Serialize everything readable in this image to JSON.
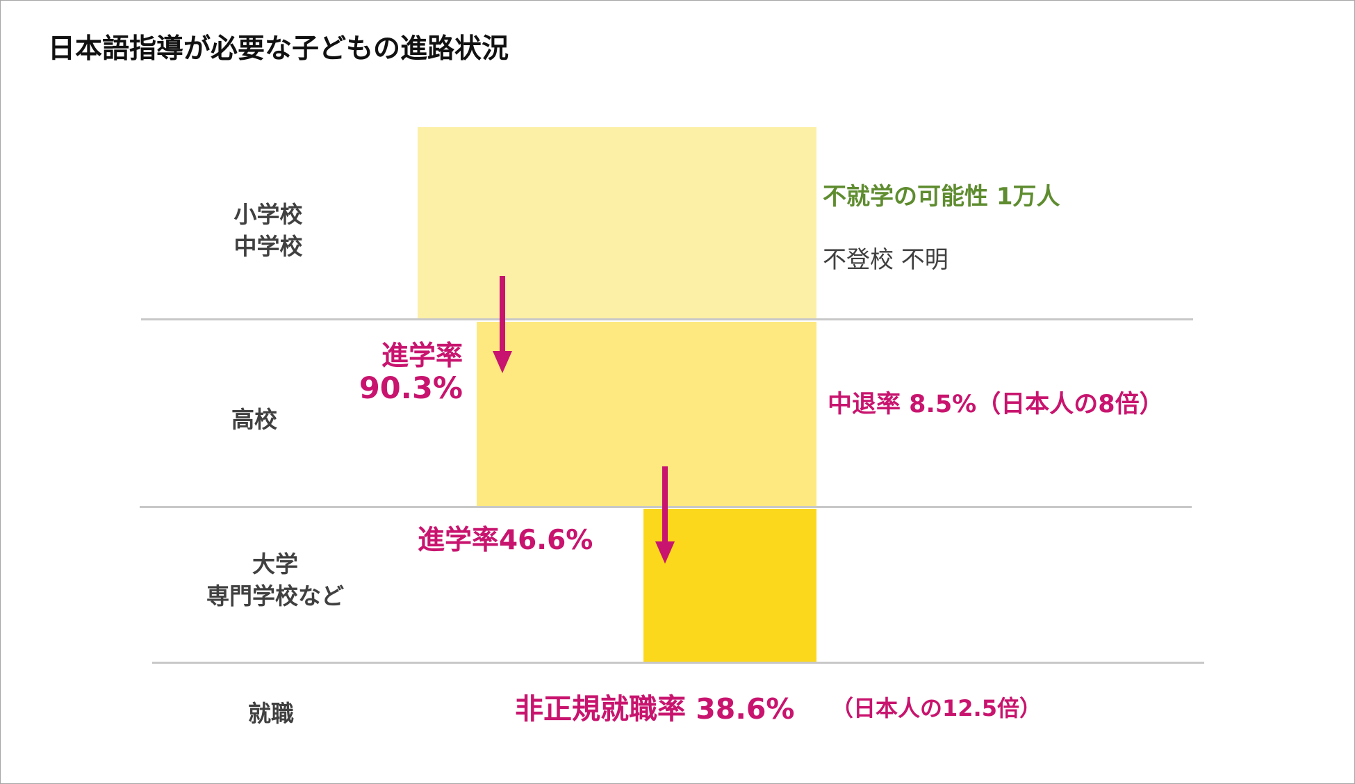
{
  "title": "日本語指導が必要な子どもの進路状況",
  "stages": {
    "elementary_middle": [
      "小学校",
      "中学校"
    ],
    "high_school": "高校",
    "university": [
      "大学",
      "専門学校など"
    ],
    "employment": "就職"
  },
  "bars": {
    "elementary_middle_color": "#fcefa6",
    "high_school_color": "#fde97f",
    "university_color": "#fbd81b"
  },
  "annotations": {
    "non_attendance": "不就学の可能性 1万人",
    "absent_unknown": "不登校 不明",
    "hs_advance_label": "進学率",
    "hs_advance_value": "90.3%",
    "hs_dropout": "中退率 8.5%（日本人の8倍）",
    "univ_advance": "進学率46.6%",
    "irregular_main": "非正規就職率 38.6%",
    "irregular_note": "（日本人の12.5倍）"
  },
  "colors": {
    "accent": "#c8146e",
    "green": "#5e8c2f",
    "separator": "#c8c8c8"
  }
}
